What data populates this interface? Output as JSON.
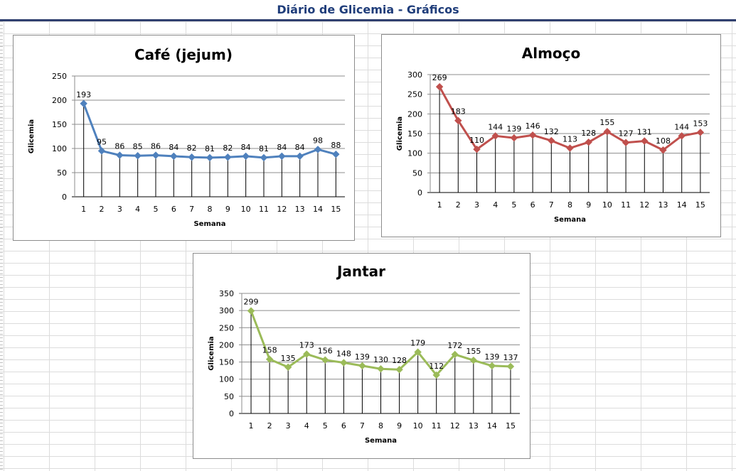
{
  "page": {
    "title": "Diário de Glicemia - Gráficos"
  },
  "chart_data": [
    {
      "type": "line",
      "title": "Café (jejum)",
      "xlabel": "Semana",
      "ylabel": "Glicemia",
      "ylim": [
        0,
        250
      ],
      "yticks": [
        0,
        50,
        100,
        150,
        200,
        250
      ],
      "x": [
        1,
        2,
        3,
        4,
        5,
        6,
        7,
        8,
        9,
        10,
        11,
        12,
        13,
        14,
        15
      ],
      "values": [
        193,
        95,
        86,
        85,
        86,
        84,
        82,
        81,
        82,
        84,
        81,
        84,
        84,
        98,
        88
      ],
      "color": "#4f81bd",
      "marker": "diamond",
      "grid": true,
      "drop_lines": true
    },
    {
      "type": "line",
      "title": "Almoço",
      "xlabel": "Semana",
      "ylabel": "Glicemia",
      "ylim": [
        0,
        300
      ],
      "yticks": [
        0,
        50,
        100,
        150,
        200,
        250,
        300
      ],
      "x": [
        1,
        2,
        3,
        4,
        5,
        6,
        7,
        8,
        9,
        10,
        11,
        12,
        13,
        14,
        15
      ],
      "values": [
        269,
        183,
        110,
        144,
        139,
        146,
        132,
        113,
        128,
        155,
        127,
        131,
        108,
        144,
        153
      ],
      "color": "#c0504d",
      "marker": "diamond",
      "grid": true,
      "drop_lines": true
    },
    {
      "type": "line",
      "title": "Jantar",
      "xlabel": "Semana",
      "ylabel": "Glicemia",
      "ylim": [
        0,
        350
      ],
      "yticks": [
        0,
        50,
        100,
        150,
        200,
        250,
        300,
        350
      ],
      "x": [
        1,
        2,
        3,
        4,
        5,
        6,
        7,
        8,
        9,
        10,
        11,
        12,
        13,
        14,
        15
      ],
      "values": [
        299,
        158,
        135,
        173,
        156,
        148,
        139,
        130,
        128,
        179,
        112,
        172,
        155,
        139,
        137
      ],
      "color": "#9bbb59",
      "marker": "diamond",
      "grid": true,
      "drop_lines": true
    }
  ]
}
